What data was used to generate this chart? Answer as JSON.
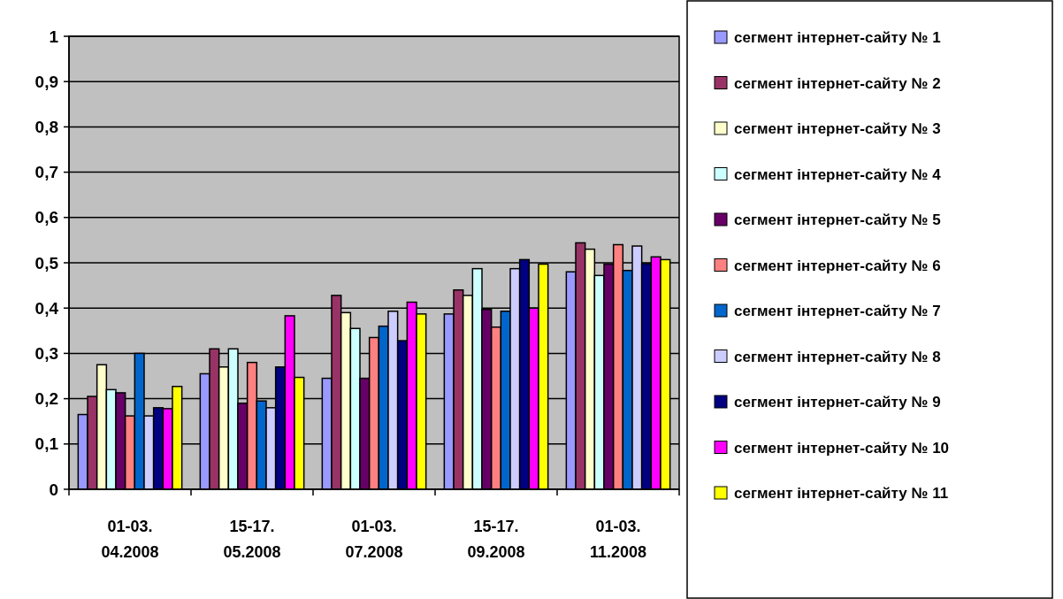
{
  "chart_data": {
    "type": "bar",
    "categories": [
      "01-03. 04.2008",
      "15-17. 05.2008",
      "01-03. 07.2008",
      "15-17. 09.2008",
      "01-03. 11.2008"
    ],
    "series": [
      {
        "name": "сегмент інтернет-сайту № 1",
        "color": "#9999ff",
        "values": [
          0.165,
          0.255,
          0.245,
          0.387,
          0.48
        ]
      },
      {
        "name": "сегмент інтернет-сайту № 2",
        "color": "#993366",
        "values": [
          0.205,
          0.31,
          0.428,
          0.44,
          0.544
        ]
      },
      {
        "name": "сегмент інтернет-сайту № 3",
        "color": "#ffffcc",
        "values": [
          0.275,
          0.27,
          0.39,
          0.428,
          0.53
        ]
      },
      {
        "name": "сегмент інтернет-сайту № 4",
        "color": "#ccffff",
        "values": [
          0.22,
          0.31,
          0.355,
          0.487,
          0.472
        ]
      },
      {
        "name": "сегмент інтернет-сайту № 5",
        "color": "#660066",
        "values": [
          0.213,
          0.19,
          0.245,
          0.397,
          0.497
        ]
      },
      {
        "name": "сегмент інтернет-сайту № 6",
        "color": "#ff8080",
        "values": [
          0.162,
          0.28,
          0.335,
          0.358,
          0.54
        ]
      },
      {
        "name": "сегмент інтернет-сайту № 7",
        "color": "#0066cc",
        "values": [
          0.3,
          0.195,
          0.36,
          0.393,
          0.483
        ]
      },
      {
        "name": "сегмент інтернет-сайту № 8",
        "color": "#ccccff",
        "values": [
          0.162,
          0.18,
          0.393,
          0.487,
          0.537
        ]
      },
      {
        "name": "сегмент інтернет-сайту № 9",
        "color": "#000080",
        "values": [
          0.18,
          0.27,
          0.328,
          0.507,
          0.498
        ]
      },
      {
        "name": "сегмент інтернет-сайту № 10",
        "color": "#ff00ff",
        "values": [
          0.178,
          0.383,
          0.413,
          0.4,
          0.513
        ]
      },
      {
        "name": "сегмент інтернет-сайту № 11",
        "color": "#ffff00",
        "values": [
          0.227,
          0.247,
          0.387,
          0.497,
          0.507
        ]
      }
    ],
    "ylim": [
      0,
      1
    ],
    "yticks": [
      {
        "value": 0,
        "label": "0"
      },
      {
        "value": 0.1,
        "label": "0,1"
      },
      {
        "value": 0.2,
        "label": "0,2"
      },
      {
        "value": 0.3,
        "label": "0,3"
      },
      {
        "value": 0.4,
        "label": "0,4"
      },
      {
        "value": 0.5,
        "label": "0,5"
      },
      {
        "value": 0.6,
        "label": "0,6"
      },
      {
        "value": 0.7,
        "label": "0,7"
      },
      {
        "value": 0.8,
        "label": "0,8"
      },
      {
        "value": 0.9,
        "label": "0,9"
      },
      {
        "value": 1,
        "label": "1"
      }
    ],
    "grid": "y",
    "legend": "right"
  }
}
